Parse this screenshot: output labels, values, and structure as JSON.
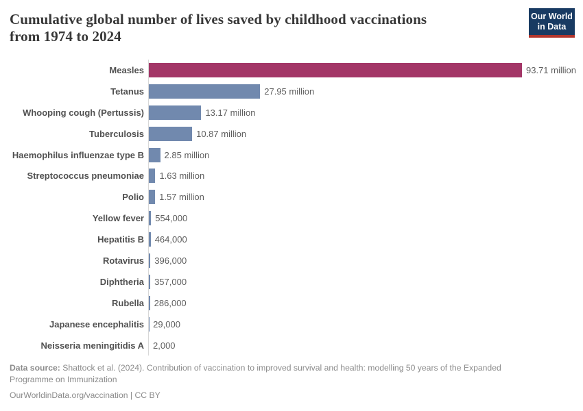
{
  "header": {
    "title_line1": "Cumulative global number of lives saved by childhood vaccinations",
    "title_line2": "from 1974 to 2024"
  },
  "logo": {
    "line1": "Our World",
    "line2": "in Data",
    "bg_color": "#183a62",
    "accent_color": "#b2352c"
  },
  "chart_data": {
    "type": "bar",
    "orientation": "horizontal",
    "title": "Cumulative global number of lives saved by childhood vaccinations from 1974 to 2024",
    "categories": [
      "Measles",
      "Tetanus",
      "Whooping cough (Pertussis)",
      "Tuberculosis",
      "Haemophilus influenzae type B",
      "Streptococcus pneumoniae",
      "Polio",
      "Yellow fever",
      "Hepatitis B",
      "Rotavirus",
      "Diphtheria",
      "Rubella",
      "Japanese encephalitis",
      "Neisseria meningitidis A"
    ],
    "values_millions": [
      93.71,
      27.95,
      13.17,
      10.87,
      2.85,
      1.63,
      1.57,
      0.554,
      0.464,
      0.396,
      0.357,
      0.286,
      0.029,
      0.002
    ],
    "value_labels": [
      "93.71 million",
      "27.95 million",
      "13.17 million",
      "10.87 million",
      "2.85 million",
      "1.63 million",
      "1.57 million",
      "554,000",
      "464,000",
      "396,000",
      "357,000",
      "286,000",
      "29,000",
      "2,000"
    ],
    "xlim_millions": [
      0,
      93.71
    ],
    "highlight_index": 0,
    "bar_colors": {
      "highlight": "#a33667",
      "default": "#7189ae"
    },
    "axis_color": "#d8d8d8",
    "grid": false,
    "legend": false
  },
  "footer": {
    "data_source_label": "Data source:",
    "data_source_text": " Shattock et al. (2024). Contribution of vaccination to improved survival and health: modelling 50 years of the Expanded Programme on Immunization",
    "license_line": "OurWorldinData.org/vaccination | CC BY"
  }
}
